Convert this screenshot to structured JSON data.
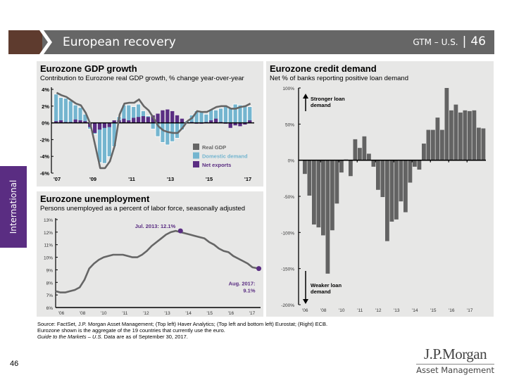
{
  "header": {
    "title": "European recovery",
    "gtm_label": "GTM – U.S.",
    "separator": "|",
    "page_number": "46"
  },
  "side_tab": {
    "label": "International"
  },
  "colors": {
    "brand_brown": "#5e3b2e",
    "header_gray": "#666666",
    "purple": "#5a2d82",
    "light_blue": "#74b5cf",
    "bar_gray": "#636363",
    "panel_bg": "#e7e7e6"
  },
  "chart_data": [
    {
      "id": "gdp",
      "type": "bar",
      "title": "Eurozone GDP growth",
      "subtitle": "Contribution to Eurozone real GDP growth, % change year-over-year",
      "ylim": [
        -6,
        4
      ],
      "yticks": [
        "4%",
        "2%",
        "0%",
        "-2%",
        "-4%",
        "-6%"
      ],
      "ytick_values": [
        4,
        2,
        0,
        -2,
        -4,
        -6
      ],
      "xtick_labels": [
        "'07",
        "'09",
        "'11",
        "'13",
        "'15",
        "'17"
      ],
      "xtick_index": [
        0,
        8,
        16,
        24,
        32,
        40
      ],
      "legend": [
        "Real GDP",
        "Domestic demand",
        "Net exports"
      ],
      "legend_position": "bottom-right",
      "series": [
        {
          "name": "Real GDP",
          "type": "line",
          "values": [
            3.6,
            3.3,
            3.1,
            2.7,
            2.3,
            2.1,
            1.2,
            -0.2,
            -2.8,
            -5.4,
            -5.4,
            -4.6,
            -2.7,
            1.0,
            2.3,
            2.4,
            2.4,
            2.8,
            2.0,
            1.5,
            0.6,
            -0.4,
            -0.9,
            -1.1,
            -1.2,
            -1.2,
            -0.6,
            0.2,
            0.6,
            1.4,
            1.3,
            1.3,
            1.6,
            1.9,
            2.0,
            2.0,
            1.7,
            1.7,
            1.9,
            2.0,
            2.3
          ]
        },
        {
          "name": "Domestic demand",
          "type": "bar",
          "values": [
            3.4,
            3.0,
            2.9,
            2.6,
            2.1,
            1.8,
            1.0,
            -0.7,
            -1.3,
            -4.7,
            -4.8,
            -4.0,
            -2.8,
            0.7,
            2.1,
            2.1,
            1.9,
            2.2,
            1.4,
            0.8,
            -0.7,
            -1.6,
            -2.3,
            -2.6,
            -2.2,
            -1.8,
            -0.8,
            0.2,
            0.9,
            1.4,
            1.4,
            1.0,
            1.6,
            1.5,
            1.7,
            2.0,
            1.8,
            2.2,
            2.1,
            2.0,
            1.9
          ]
        },
        {
          "name": "Net exports",
          "type": "bar",
          "values": [
            0.2,
            0.3,
            0.1,
            0.1,
            0.4,
            0.3,
            0.2,
            -0.5,
            -1.2,
            -0.8,
            -0.6,
            -0.5,
            0.3,
            0.3,
            0.5,
            0.3,
            0.6,
            0.7,
            0.8,
            0.7,
            0.9,
            1.1,
            1.5,
            1.6,
            1.4,
            0.9,
            0.5,
            0.0,
            0.1,
            -0.1,
            -0.1,
            0.1,
            0.3,
            0.5,
            0.1,
            -0.1,
            -0.6,
            -0.3,
            -0.4,
            -0.2,
            0.3
          ]
        }
      ]
    },
    {
      "id": "unemployment",
      "type": "line",
      "title": "Eurozone unemployment",
      "subtitle": "Persons unemployed as a percent of labor force, seasonally adjusted",
      "ylim": [
        6,
        13
      ],
      "yticks": [
        "13%",
        "12%",
        "11%",
        "10%",
        "9%",
        "8%",
        "7%",
        "6%"
      ],
      "ytick_values": [
        13,
        12,
        11,
        10,
        9,
        8,
        7,
        6
      ],
      "xtick_labels": [
        "'06",
        "'08",
        "'10",
        "'11",
        "'12",
        "'13",
        "'14",
        "'15",
        "'16",
        "'17"
      ],
      "xlim": [
        2007.0,
        2017.67
      ],
      "annotations": [
        {
          "label": "Jul. 2013: 12.1%",
          "x": 2013.5,
          "y": 12.1
        },
        {
          "label_line1": "Aug. 2017:",
          "label_line2": "9.1%",
          "x": 2017.58,
          "y": 9.1
        }
      ],
      "x": [
        2007.0,
        2007.25,
        2007.5,
        2007.75,
        2008.0,
        2008.25,
        2008.5,
        2008.75,
        2009.0,
        2009.25,
        2009.5,
        2009.75,
        2010.0,
        2010.25,
        2010.5,
        2010.75,
        2011.0,
        2011.25,
        2011.5,
        2011.75,
        2012.0,
        2012.25,
        2012.5,
        2012.75,
        2013.0,
        2013.25,
        2013.5,
        2013.75,
        2014.0,
        2014.25,
        2014.5,
        2014.75,
        2015.0,
        2015.25,
        2015.5,
        2015.75,
        2016.0,
        2016.25,
        2016.5,
        2016.75,
        2017.0,
        2017.25,
        2017.58
      ],
      "values": [
        7.3,
        7.2,
        7.2,
        7.3,
        7.4,
        7.6,
        8.2,
        9.1,
        9.5,
        9.8,
        10.0,
        10.1,
        10.2,
        10.2,
        10.2,
        10.1,
        10.0,
        10.0,
        10.2,
        10.5,
        10.9,
        11.2,
        11.5,
        11.8,
        12.0,
        12.1,
        12.0,
        11.9,
        11.8,
        11.7,
        11.6,
        11.5,
        11.2,
        11.0,
        10.7,
        10.5,
        10.4,
        10.1,
        9.9,
        9.7,
        9.5,
        9.2,
        9.1
      ]
    },
    {
      "id": "credit",
      "type": "bar",
      "title": "Eurozone credit demand",
      "subtitle": "Net % of banks reporting positive loan demand",
      "ylim": [
        -200,
        100
      ],
      "yticks": [
        "100%",
        "50%",
        "0%",
        "-50%",
        "-100%",
        "-150%",
        "-200%"
      ],
      "ytick_values": [
        100,
        50,
        0,
        -50,
        -100,
        -150,
        -200
      ],
      "xtick_labels": [
        "'06",
        "'08",
        "'10",
        "'11",
        "'12",
        "'13",
        "'14",
        "'15",
        "'16",
        "'17"
      ],
      "xtick_index": [
        0,
        4,
        8,
        12,
        16,
        20,
        24,
        28,
        32,
        36
      ],
      "annotations": [
        {
          "label_line1": "Stronger loan",
          "label_line2": "demand",
          "direction": "up"
        },
        {
          "label_line1": "Weaker loan",
          "label_line2": "demand",
          "direction": "down"
        }
      ],
      "values": [
        -19,
        -49,
        -89,
        -93,
        -104,
        -157,
        -97,
        -60,
        -17,
        1,
        -22,
        29,
        17,
        33,
        9,
        -9,
        -41,
        -51,
        -112,
        -85,
        -82,
        -57,
        -72,
        -31,
        -9,
        -13,
        23,
        42,
        42,
        59,
        42,
        100,
        69,
        77,
        66,
        69,
        68,
        69,
        45,
        44
      ]
    }
  ],
  "footer": {
    "source_line1": "Source: FactSet, J.P. Morgan Asset Management; (Top left) Haver Analytics; (Top left and bottom left) Eurostat; (Right) ECB.",
    "source_line2": "Eurozone shown is the aggregate of the 19 countries that currently use the euro.",
    "gtm_italic": "Guide to the Markets – U.S.",
    "date_note": " Data are as of September 30, 2017.",
    "page_number": "46"
  },
  "logo": {
    "name": "J.P.Morgan",
    "sub": "Asset Management"
  }
}
